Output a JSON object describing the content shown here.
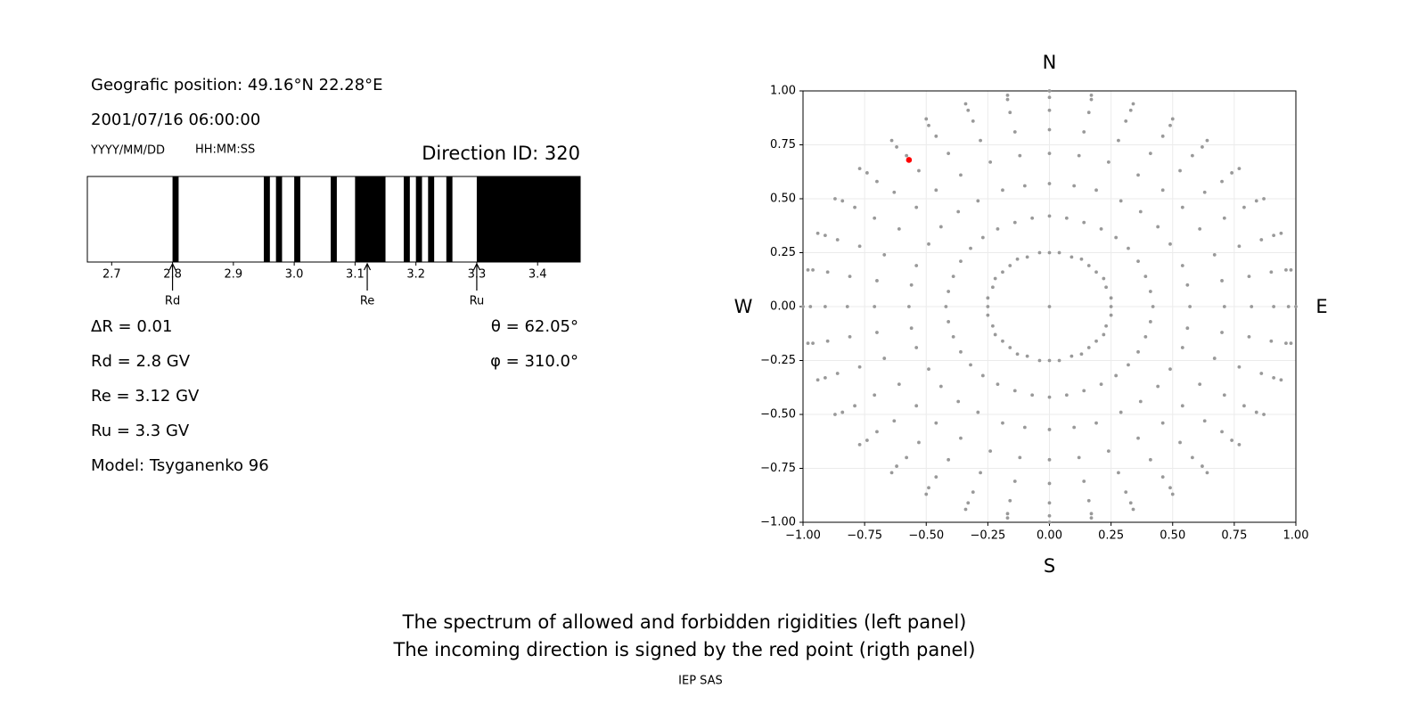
{
  "chart_data": [
    {
      "type": "spectrum",
      "position": "Geografic position: 49.16°N 22.28°E",
      "datetime": "2001/07/16 06:00:00",
      "date_format": "YYYY/MM/DD",
      "time_format": "HH:MM:SS",
      "title": "Direction ID: 320",
      "xlim": [
        2.66,
        3.47
      ],
      "xticks": [
        2.7,
        2.8,
        2.9,
        {
          "value": 3.0,
          "label": "3.0"
        },
        3.1,
        3.2,
        3.3,
        3.4
      ],
      "band_color": "#000000",
      "bands": [
        [
          2.8,
          2.81
        ],
        [
          2.95,
          2.96
        ],
        [
          2.97,
          2.98
        ],
        [
          3.0,
          3.01
        ],
        [
          3.06,
          3.07
        ],
        [
          3.1,
          3.15
        ],
        [
          3.18,
          3.19
        ],
        [
          3.2,
          3.21
        ],
        [
          3.22,
          3.23
        ],
        [
          3.25,
          3.26
        ],
        [
          3.3,
          3.47
        ]
      ],
      "markers": [
        {
          "label": "Rd",
          "value": 2.8
        },
        {
          "label": "Re",
          "value": 3.12
        },
        {
          "label": "Ru",
          "value": 3.3
        }
      ],
      "parameters_left": [
        "ΔR = 0.01",
        "Rd = 2.8 GV",
        "Re = 3.12 GV",
        "Ru = 3.3 GV",
        "Model: Tsyganenko 96"
      ],
      "parameters_right": [
        "θ = 62.05°",
        "φ = 310.0°"
      ]
    },
    {
      "type": "scatter",
      "directions": {
        "north": "N",
        "south": "S",
        "west": "W",
        "east": "E"
      },
      "xlim": [
        -1,
        1
      ],
      "ylim": [
        -1,
        1
      ],
      "xticks": [
        {
          "value": -1,
          "label": "−1.00"
        },
        {
          "value": -0.75,
          "label": "−0.75"
        },
        {
          "value": -0.5,
          "label": "−0.50"
        },
        {
          "value": -0.25,
          "label": "−0.25"
        },
        {
          "value": 0,
          "label": "0.00"
        },
        {
          "value": 0.25,
          "label": "0.25"
        },
        {
          "value": 0.5,
          "label": "0.50"
        },
        {
          "value": 0.75,
          "label": "0.75"
        },
        {
          "value": 1,
          "label": "1.00"
        }
      ],
      "yticks": [
        {
          "value": -1,
          "label": "−1.00"
        },
        {
          "value": -0.75,
          "label": "−0.75"
        },
        {
          "value": -0.5,
          "label": "−0.50"
        },
        {
          "value": -0.25,
          "label": "−0.25"
        },
        {
          "value": 0,
          "label": "0.00"
        },
        {
          "value": 0.25,
          "label": "0.25"
        },
        {
          "value": 0.5,
          "label": "0.50"
        },
        {
          "value": 0.75,
          "label": "0.75"
        },
        {
          "value": 1,
          "label": "1.00"
        }
      ],
      "grid": true,
      "series": [
        {
          "color": "#999999",
          "x": [
            0,
            0,
            0.04,
            0.09,
            0.13,
            0.16,
            0.19,
            0.22,
            0.23,
            0.25,
            0.25,
            0.25,
            0.23,
            0.22,
            0.19,
            0.16,
            0.13,
            0.09,
            0.04,
            0,
            -0.04,
            -0.09,
            -0.13,
            -0.16,
            -0.19,
            -0.22,
            -0.23,
            -0.25,
            -0.25,
            -0.25,
            -0.23,
            -0.22,
            -0.19,
            -0.16,
            -0.13,
            -0.09,
            -0.04,
            0,
            0.07,
            0.14,
            0.21,
            0.27,
            0.32,
            0.36,
            0.39,
            0.41,
            0.42,
            0.41,
            0.39,
            0.36,
            0.32,
            0.27,
            0.21,
            0.14,
            0.07,
            0,
            -0.07,
            -0.14,
            -0.21,
            -0.27,
            -0.32,
            -0.36,
            -0.39,
            -0.41,
            -0.42,
            -0.41,
            -0.39,
            -0.36,
            -0.32,
            -0.27,
            -0.21,
            -0.14,
            -0.07,
            0,
            0.1,
            0.19,
            0.29,
            0.37,
            0.44,
            0.49,
            0.54,
            0.56,
            0.57,
            0.56,
            0.54,
            0.49,
            0.44,
            0.37,
            0.29,
            0.19,
            0.1,
            0,
            -0.1,
            -0.19,
            -0.29,
            -0.37,
            -0.44,
            -0.49,
            -0.54,
            -0.56,
            -0.57,
            -0.56,
            -0.54,
            -0.49,
            -0.44,
            -0.37,
            -0.29,
            -0.19,
            -0.1,
            0,
            0.12,
            0.24,
            0.36,
            0.46,
            0.54,
            0.61,
            0.67,
            0.7,
            0.71,
            0.7,
            0.67,
            0.61,
            0.54,
            0.46,
            0.36,
            0.24,
            0.12,
            0,
            -0.12,
            -0.24,
            -0.36,
            -0.46,
            -0.54,
            -0.61,
            -0.67,
            -0.7,
            -0.71,
            -0.7,
            -0.67,
            -0.61,
            -0.54,
            -0.46,
            -0.36,
            -0.24,
            -0.12,
            0,
            0.14,
            0.28,
            0.41,
            0.53,
            0.63,
            0.71,
            0.77,
            0.81,
            0.82,
            0.81,
            0.77,
            0.71,
            0.63,
            0.53,
            0.41,
            0.28,
            0.14,
            0,
            -0.14,
            -0.28,
            -0.41,
            -0.53,
            -0.63,
            -0.71,
            -0.77,
            -0.81,
            -0.82,
            -0.81,
            -0.77,
            -0.71,
            -0.63,
            -0.53,
            -0.41,
            -0.28,
            -0.14,
            0,
            0.16,
            0.31,
            0.46,
            0.58,
            0.7,
            0.79,
            0.86,
            0.9,
            0.91,
            0.9,
            0.86,
            0.79,
            0.7,
            0.58,
            0.46,
            0.31,
            0.16,
            0,
            -0.16,
            -0.31,
            -0.46,
            -0.58,
            -0.7,
            -0.79,
            -0.86,
            -0.9,
            -0.91,
            -0.9,
            -0.86,
            -0.79,
            -0.7,
            -0.58,
            -0.46,
            -0.31,
            -0.16,
            0,
            0.17,
            0.33,
            0.49,
            0.62,
            0.74,
            0.84,
            0.91,
            0.96,
            0.97,
            0.96,
            0.91,
            0.84,
            0.74,
            0.62,
            0.49,
            0.33,
            0.17,
            0,
            -0.17,
            -0.33,
            -0.49,
            -0.62,
            -0.74,
            -0.84,
            -0.91,
            -0.96,
            -0.97,
            -0.96,
            -0.91,
            -0.84,
            -0.74,
            -0.62,
            -0.49,
            -0.33,
            -0.17,
            0,
            0.17,
            0.34,
            0.5,
            0.64,
            0.77,
            0.87,
            0.94,
            0.98,
            1,
            0.98,
            0.94,
            0.87,
            0.77,
            0.64,
            0.5,
            0.34,
            0.17,
            0,
            -0.17,
            -0.34,
            -0.5,
            -0.64,
            -0.77,
            -0.87,
            -0.94,
            -0.98,
            -1,
            -0.98,
            -0.94,
            -0.87,
            -0.77,
            -0.64,
            -0.5,
            -0.34,
            -0.17
          ],
          "values": [
            0,
            0.25,
            0.25,
            0.23,
            0.22,
            0.19,
            0.16,
            0.13,
            0.09,
            0.04,
            0,
            -0.04,
            -0.09,
            -0.13,
            -0.16,
            -0.19,
            -0.22,
            -0.23,
            -0.25,
            -0.25,
            -0.25,
            -0.23,
            -0.22,
            -0.19,
            -0.16,
            -0.13,
            -0.09,
            -0.04,
            0,
            0.04,
            0.09,
            0.13,
            0.16,
            0.19,
            0.22,
            0.23,
            0.25,
            0.42,
            0.41,
            0.39,
            0.36,
            0.32,
            0.27,
            0.21,
            0.14,
            0.07,
            0,
            -0.07,
            -0.14,
            -0.21,
            -0.27,
            -0.32,
            -0.36,
            -0.39,
            -0.41,
            -0.42,
            -0.41,
            -0.39,
            -0.36,
            -0.32,
            -0.27,
            -0.21,
            -0.14,
            -0.07,
            0,
            0.07,
            0.14,
            0.21,
            0.27,
            0.32,
            0.36,
            0.39,
            0.41,
            0.57,
            0.56,
            0.54,
            0.49,
            0.44,
            0.37,
            0.29,
            0.19,
            0.1,
            0,
            -0.1,
            -0.19,
            -0.29,
            -0.37,
            -0.44,
            -0.49,
            -0.54,
            -0.56,
            -0.57,
            -0.56,
            -0.54,
            -0.49,
            -0.44,
            -0.37,
            -0.29,
            -0.19,
            -0.1,
            0,
            0.1,
            0.19,
            0.29,
            0.37,
            0.44,
            0.49,
            0.54,
            0.56,
            0.71,
            0.7,
            0.67,
            0.61,
            0.54,
            0.46,
            0.36,
            0.24,
            0.12,
            0,
            -0.12,
            -0.24,
            -0.36,
            -0.46,
            -0.54,
            -0.61,
            -0.67,
            -0.7,
            -0.71,
            -0.7,
            -0.67,
            -0.61,
            -0.54,
            -0.46,
            -0.36,
            -0.24,
            -0.12,
            0,
            0.12,
            0.24,
            0.36,
            0.46,
            0.54,
            0.61,
            0.67,
            0.7,
            0.82,
            0.81,
            0.77,
            0.71,
            0.63,
            0.53,
            0.41,
            0.28,
            0.14,
            0,
            -0.14,
            -0.28,
            -0.41,
            -0.53,
            -0.63,
            -0.71,
            -0.77,
            -0.81,
            -0.82,
            -0.81,
            -0.77,
            -0.71,
            -0.63,
            -0.53,
            -0.41,
            -0.28,
            -0.14,
            0,
            0.14,
            0.28,
            0.41,
            0.53,
            0.63,
            0.71,
            0.77,
            0.81,
            0.91,
            0.9,
            0.86,
            0.79,
            0.7,
            0.58,
            0.46,
            0.31,
            0.16,
            0,
            -0.16,
            -0.31,
            -0.46,
            -0.58,
            -0.7,
            -0.79,
            -0.86,
            -0.9,
            -0.91,
            -0.9,
            -0.86,
            -0.79,
            -0.7,
            -0.58,
            -0.46,
            -0.31,
            -0.16,
            0,
            0.16,
            0.31,
            0.46,
            0.58,
            0.7,
            0.79,
            0.86,
            0.9,
            0.97,
            0.96,
            0.91,
            0.84,
            0.74,
            0.62,
            0.49,
            0.33,
            0.17,
            0,
            -0.17,
            -0.33,
            -0.49,
            -0.62,
            -0.74,
            -0.84,
            -0.91,
            -0.96,
            -0.97,
            -0.96,
            -0.91,
            -0.84,
            -0.74,
            -0.62,
            -0.49,
            -0.33,
            -0.17,
            0,
            0.17,
            0.33,
            0.49,
            0.62,
            0.74,
            0.84,
            0.91,
            0.96,
            1,
            0.98,
            0.94,
            0.87,
            0.77,
            0.64,
            0.5,
            0.34,
            0.17,
            0,
            -0.17,
            -0.34,
            -0.5,
            -0.64,
            -0.77,
            -0.87,
            -0.94,
            -0.98,
            -1,
            -0.98,
            -0.94,
            -0.87,
            -0.77,
            -0.64,
            -0.5,
            -0.34,
            -0.17,
            0,
            0.17,
            0.34,
            0.5,
            0.64,
            0.77,
            0.87,
            0.94,
            0.98
          ]
        },
        {
          "color": "#ff0000",
          "x": [
            -0.57
          ],
          "values": [
            0.68
          ]
        }
      ]
    }
  ],
  "caption": [
    "The spectrum of allowed and forbidden rigidities (left panel)",
    "The incoming direction is signed by the red point (rigth panel)"
  ],
  "footer": "IEP SAS"
}
